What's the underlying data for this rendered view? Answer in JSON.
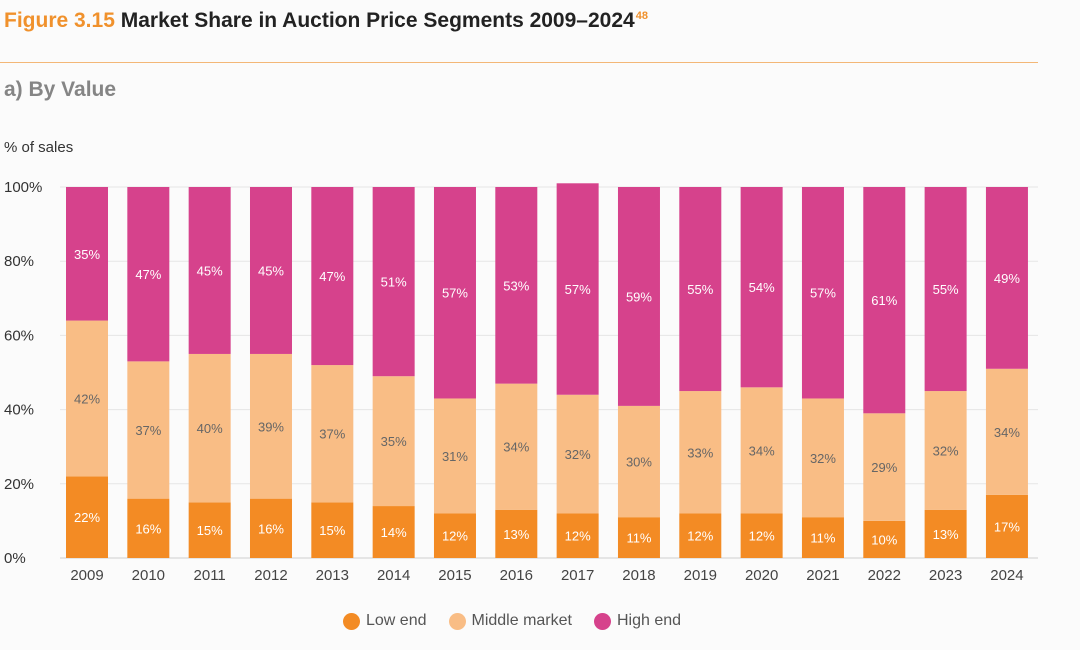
{
  "header": {
    "figure_label": "Figure 3.15",
    "title": "Market Share in Auction Price Segments 2009–2024",
    "footnote": "48"
  },
  "subtitle": "a) By Value",
  "colors": {
    "low_end": "#f38b24",
    "middle_market": "#f9bd85",
    "high_end": "#d6428c",
    "figure_label": "#f0912c"
  },
  "chart_data": {
    "type": "bar",
    "stacked": true,
    "ylabel": "% of sales",
    "xlabel": "",
    "ylim": [
      0,
      100
    ],
    "yticks": [
      "0%",
      "20%",
      "40%",
      "60%",
      "80%",
      "100%"
    ],
    "categories": [
      "2009",
      "2010",
      "2011",
      "2012",
      "2013",
      "2014",
      "2015",
      "2016",
      "2017",
      "2018",
      "2019",
      "2020",
      "2021",
      "2022",
      "2023",
      "2024"
    ],
    "series": [
      {
        "name": "Low end",
        "values": [
          22,
          16,
          15,
          16,
          15,
          14,
          12,
          13,
          12,
          11,
          12,
          12,
          11,
          10,
          13,
          17
        ]
      },
      {
        "name": "Middle market",
        "values": [
          42,
          37,
          40,
          39,
          37,
          35,
          31,
          34,
          32,
          30,
          33,
          34,
          32,
          29,
          32,
          34
        ]
      },
      {
        "name": "High end",
        "values": [
          35,
          47,
          45,
          45,
          47,
          51,
          57,
          53,
          57,
          59,
          55,
          54,
          57,
          61,
          55,
          49
        ]
      }
    ],
    "grid": true,
    "legend": "bottom"
  }
}
